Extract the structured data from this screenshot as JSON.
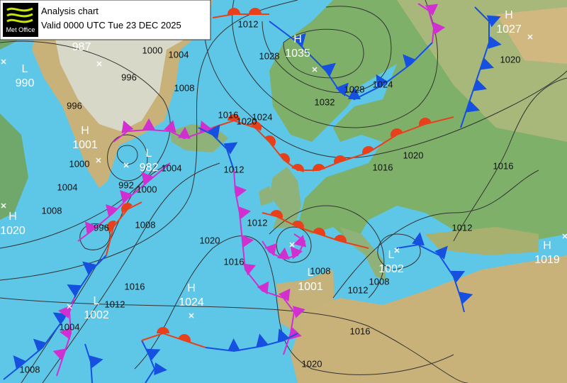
{
  "header": {
    "logo": "Met Office",
    "title": "Analysis chart",
    "valid": "Valid 0000 UTC Tue 23 DEC 2025"
  },
  "centers": [
    {
      "type": "L",
      "pressure": 990
    },
    {
      "type": "H",
      "pressure": 1001
    },
    {
      "type": "L",
      "pressure": 982
    },
    {
      "type": "H",
      "pressure": 1020
    },
    {
      "type": "L",
      "pressure": 1002
    },
    {
      "type": "H",
      "pressure": 1024
    },
    {
      "type": "H",
      "pressure": 1035
    },
    {
      "type": "H",
      "pressure": 1027
    },
    {
      "type": "L",
      "pressure": 1001
    },
    {
      "type": "L",
      "pressure": 1002
    },
    {
      "type": "H",
      "pressure": 1019
    },
    {
      "pressure": 987
    }
  ],
  "isobar_labels": [
    1012,
    1000,
    1004,
    996,
    1008,
    996,
    1000,
    1004,
    1008,
    992,
    1004,
    1000,
    1008,
    996,
    1012,
    1016,
    1020,
    1024,
    1028,
    1032,
    1028,
    1024,
    1020,
    1016,
    1020,
    1016,
    1012,
    1012,
    1020,
    1016,
    1016,
    1012,
    1004,
    1008,
    1008,
    1008,
    1012,
    1016,
    1020
  ]
}
